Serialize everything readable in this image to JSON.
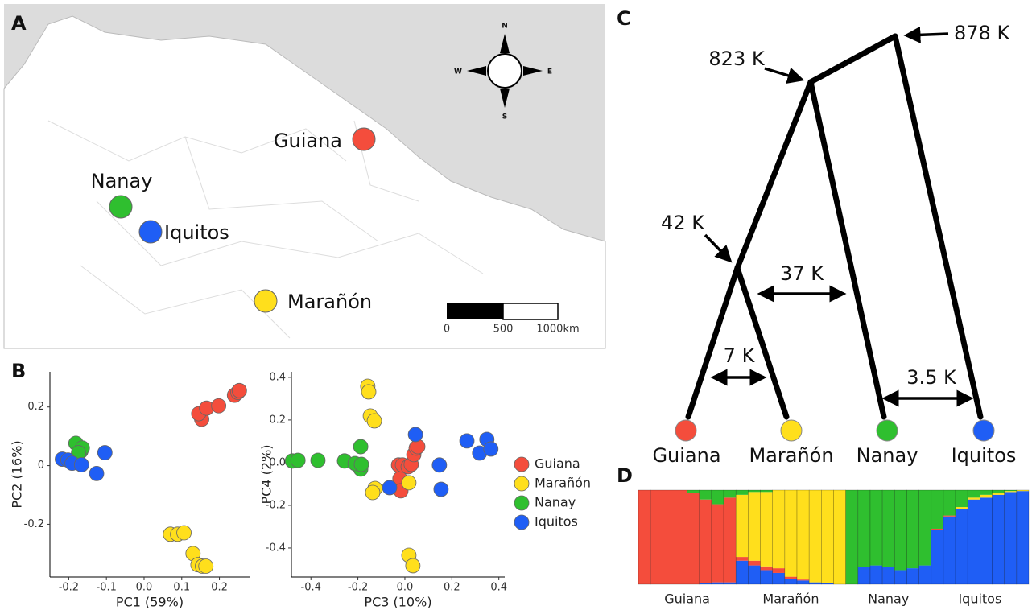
{
  "panels": [
    "A",
    "B",
    "C",
    "D"
  ],
  "map": {
    "places": [
      "Guiana",
      "Nanay",
      "Iquitos",
      "Marañón"
    ],
    "compass": [
      "N",
      "W",
      "E",
      "S"
    ],
    "scale": [
      "0",
      "500",
      "1000km"
    ]
  },
  "tree": {
    "nodes": [
      "878 K",
      "823 K",
      "42 K"
    ],
    "leaves": [
      "Guiana",
      "Marañón",
      "Nanay",
      "Iquitos"
    ],
    "migrations": [
      "37 K",
      "7 K",
      "3.5 K"
    ]
  },
  "chart_data": [
    {
      "type": "scatter",
      "xlabel": "PC1 (59%)",
      "ylabel": "PC2 (16%)",
      "xlim": [
        -0.25,
        0.28
      ],
      "ylim": [
        -0.38,
        0.32
      ],
      "xticks": [
        -0.2,
        -0.1,
        {
          "value": 0,
          "label": "0.0"
        },
        0.1,
        0.2
      ],
      "yticks": [
        -0.2,
        0,
        0.2
      ],
      "series": [
        {
          "color": "#f44d3c",
          "x": [
            0.153,
            0.145,
            0.166,
            0.198,
            0.24,
            0.249,
            0.253
          ],
          "values": [
            0.158,
            0.177,
            0.196,
            0.204,
            0.24,
            0.25,
            0.256
          ]
        },
        {
          "color": "#ffdf1c",
          "x": [
            0.07,
            0.089,
            0.106,
            0.13,
            0.143,
            0.155,
            0.164
          ],
          "values": [
            -0.234,
            -0.234,
            -0.229,
            -0.3,
            -0.338,
            -0.343,
            -0.343
          ]
        },
        {
          "color": "#2fbf2f",
          "x": [
            -0.181,
            -0.168,
            -0.164,
            -0.174
          ],
          "values": [
            0.076,
            0.049,
            0.06,
            0.044
          ]
        },
        {
          "color": "#1f5ef5",
          "x": [
            -0.217,
            -0.202,
            -0.191,
            -0.166,
            -0.104,
            -0.126
          ],
          "values": [
            0.022,
            0.019,
            0.008,
            0.003,
            0.044,
            -0.027
          ]
        }
      ]
    },
    {
      "type": "scatter",
      "xlabel": "PC3 (10%)",
      "ylabel": "PC4 (2%)",
      "xlim": [
        -0.483,
        0.425
      ],
      "ylim": [
        -0.536,
        0.426
      ],
      "xticks": [
        -0.4,
        -0.2,
        {
          "value": 0,
          "label": "0.0"
        },
        0.2,
        0.4
      ],
      "yticks": [
        -0.4,
        -0.2,
        {
          "value": 0,
          "label": "0.0"
        },
        0.2,
        0.4
      ],
      "series": [
        {
          "name": "Guiana",
          "color": "#f44d3c",
          "x": [
            -0.027,
            -0.021,
            -0.01,
            0.014,
            0.027,
            0.038,
            0.048,
            0.055,
            -0.017
          ],
          "values": [
            -0.011,
            -0.075,
            -0.011,
            -0.019,
            -0.008,
            0.038,
            0.068,
            0.075,
            -0.132
          ]
        },
        {
          "name": "Marañón",
          "color": "#ffdf1c",
          "x": [
            -0.158,
            -0.154,
            -0.147,
            -0.13,
            -0.127,
            -0.137,
            0.017,
            0.017,
            0.034
          ],
          "values": [
            0.358,
            0.332,
            0.219,
            0.196,
            -0.121,
            -0.14,
            -0.094,
            -0.434,
            -0.483
          ]
        },
        {
          "name": "Nanay",
          "color": "#2fbf2f",
          "x": [
            -0.479,
            -0.455,
            -0.37,
            -0.257,
            -0.188,
            -0.188,
            -0.212,
            -0.185
          ],
          "values": [
            0.008,
            0.011,
            0.011,
            0.008,
            0.075,
            -0.03,
            -0.004,
            -0.008
          ]
        },
        {
          "name": "Iquitos",
          "color": "#1f5ef5",
          "x": [
            -0.065,
            0.045,
            0.147,
            0.154,
            0.264,
            0.318,
            0.349,
            0.366
          ],
          "values": [
            -0.117,
            0.132,
            -0.011,
            -0.125,
            0.102,
            0.045,
            0.109,
            0.064
          ]
        }
      ]
    },
    {
      "type": "bar",
      "stacked": true,
      "ylim": [
        0,
        1
      ],
      "colors": [
        "#1f5ef5",
        "#f44d3c",
        "#ffdf1c",
        "#2fbf2f"
      ],
      "groups": [
        {
          "label": "Guiana",
          "bars": [
            [
              0,
              1,
              0,
              0
            ],
            [
              0,
              1,
              0,
              0
            ],
            [
              0,
              1,
              0,
              0
            ],
            [
              0,
              1,
              0,
              0
            ],
            [
              0,
              0.97,
              0,
              0.03
            ],
            [
              0.01,
              0.89,
              0,
              0.1
            ],
            [
              0.02,
              0.83,
              0,
              0.15
            ],
            [
              0.02,
              0.9,
              0,
              0.08
            ]
          ]
        },
        {
          "label": "Marañón",
          "bars": [
            [
              0.25,
              0.04,
              0.66,
              0.05
            ],
            [
              0.2,
              0.05,
              0.73,
              0.02
            ],
            [
              0.15,
              0.04,
              0.79,
              0.02
            ],
            [
              0.12,
              0.05,
              0.83,
              0
            ],
            [
              0.06,
              0.02,
              0.92,
              0
            ],
            [
              0.04,
              0.01,
              0.95,
              0
            ],
            [
              0.02,
              0,
              0.98,
              0
            ],
            [
              0.01,
              0,
              0.99,
              0
            ],
            [
              0,
              0,
              1,
              0
            ]
          ]
        },
        {
          "label": "Nanay",
          "bars": [
            [
              0,
              0,
              0,
              1
            ],
            [
              0.18,
              0,
              0,
              0.82
            ],
            [
              0.2,
              0,
              0,
              0.8
            ],
            [
              0.18,
              0,
              0,
              0.82
            ],
            [
              0.15,
              0,
              0,
              0.85
            ],
            [
              0.17,
              0,
              0,
              0.83
            ],
            [
              0.2,
              0,
              0,
              0.8
            ]
          ]
        },
        {
          "label": "Iquitos",
          "bars": [
            [
              0.58,
              0.01,
              0,
              0.41
            ],
            [
              0.72,
              0.01,
              0,
              0.27
            ],
            [
              0.8,
              0,
              0.02,
              0.18
            ],
            [
              0.9,
              0,
              0.02,
              0.08
            ],
            [
              0.92,
              0,
              0.03,
              0.05
            ],
            [
              0.95,
              0,
              0.02,
              0.03
            ],
            [
              0.98,
              0,
              0.01,
              0.01
            ],
            [
              0.99,
              0,
              0.01,
              0
            ]
          ]
        }
      ]
    }
  ]
}
